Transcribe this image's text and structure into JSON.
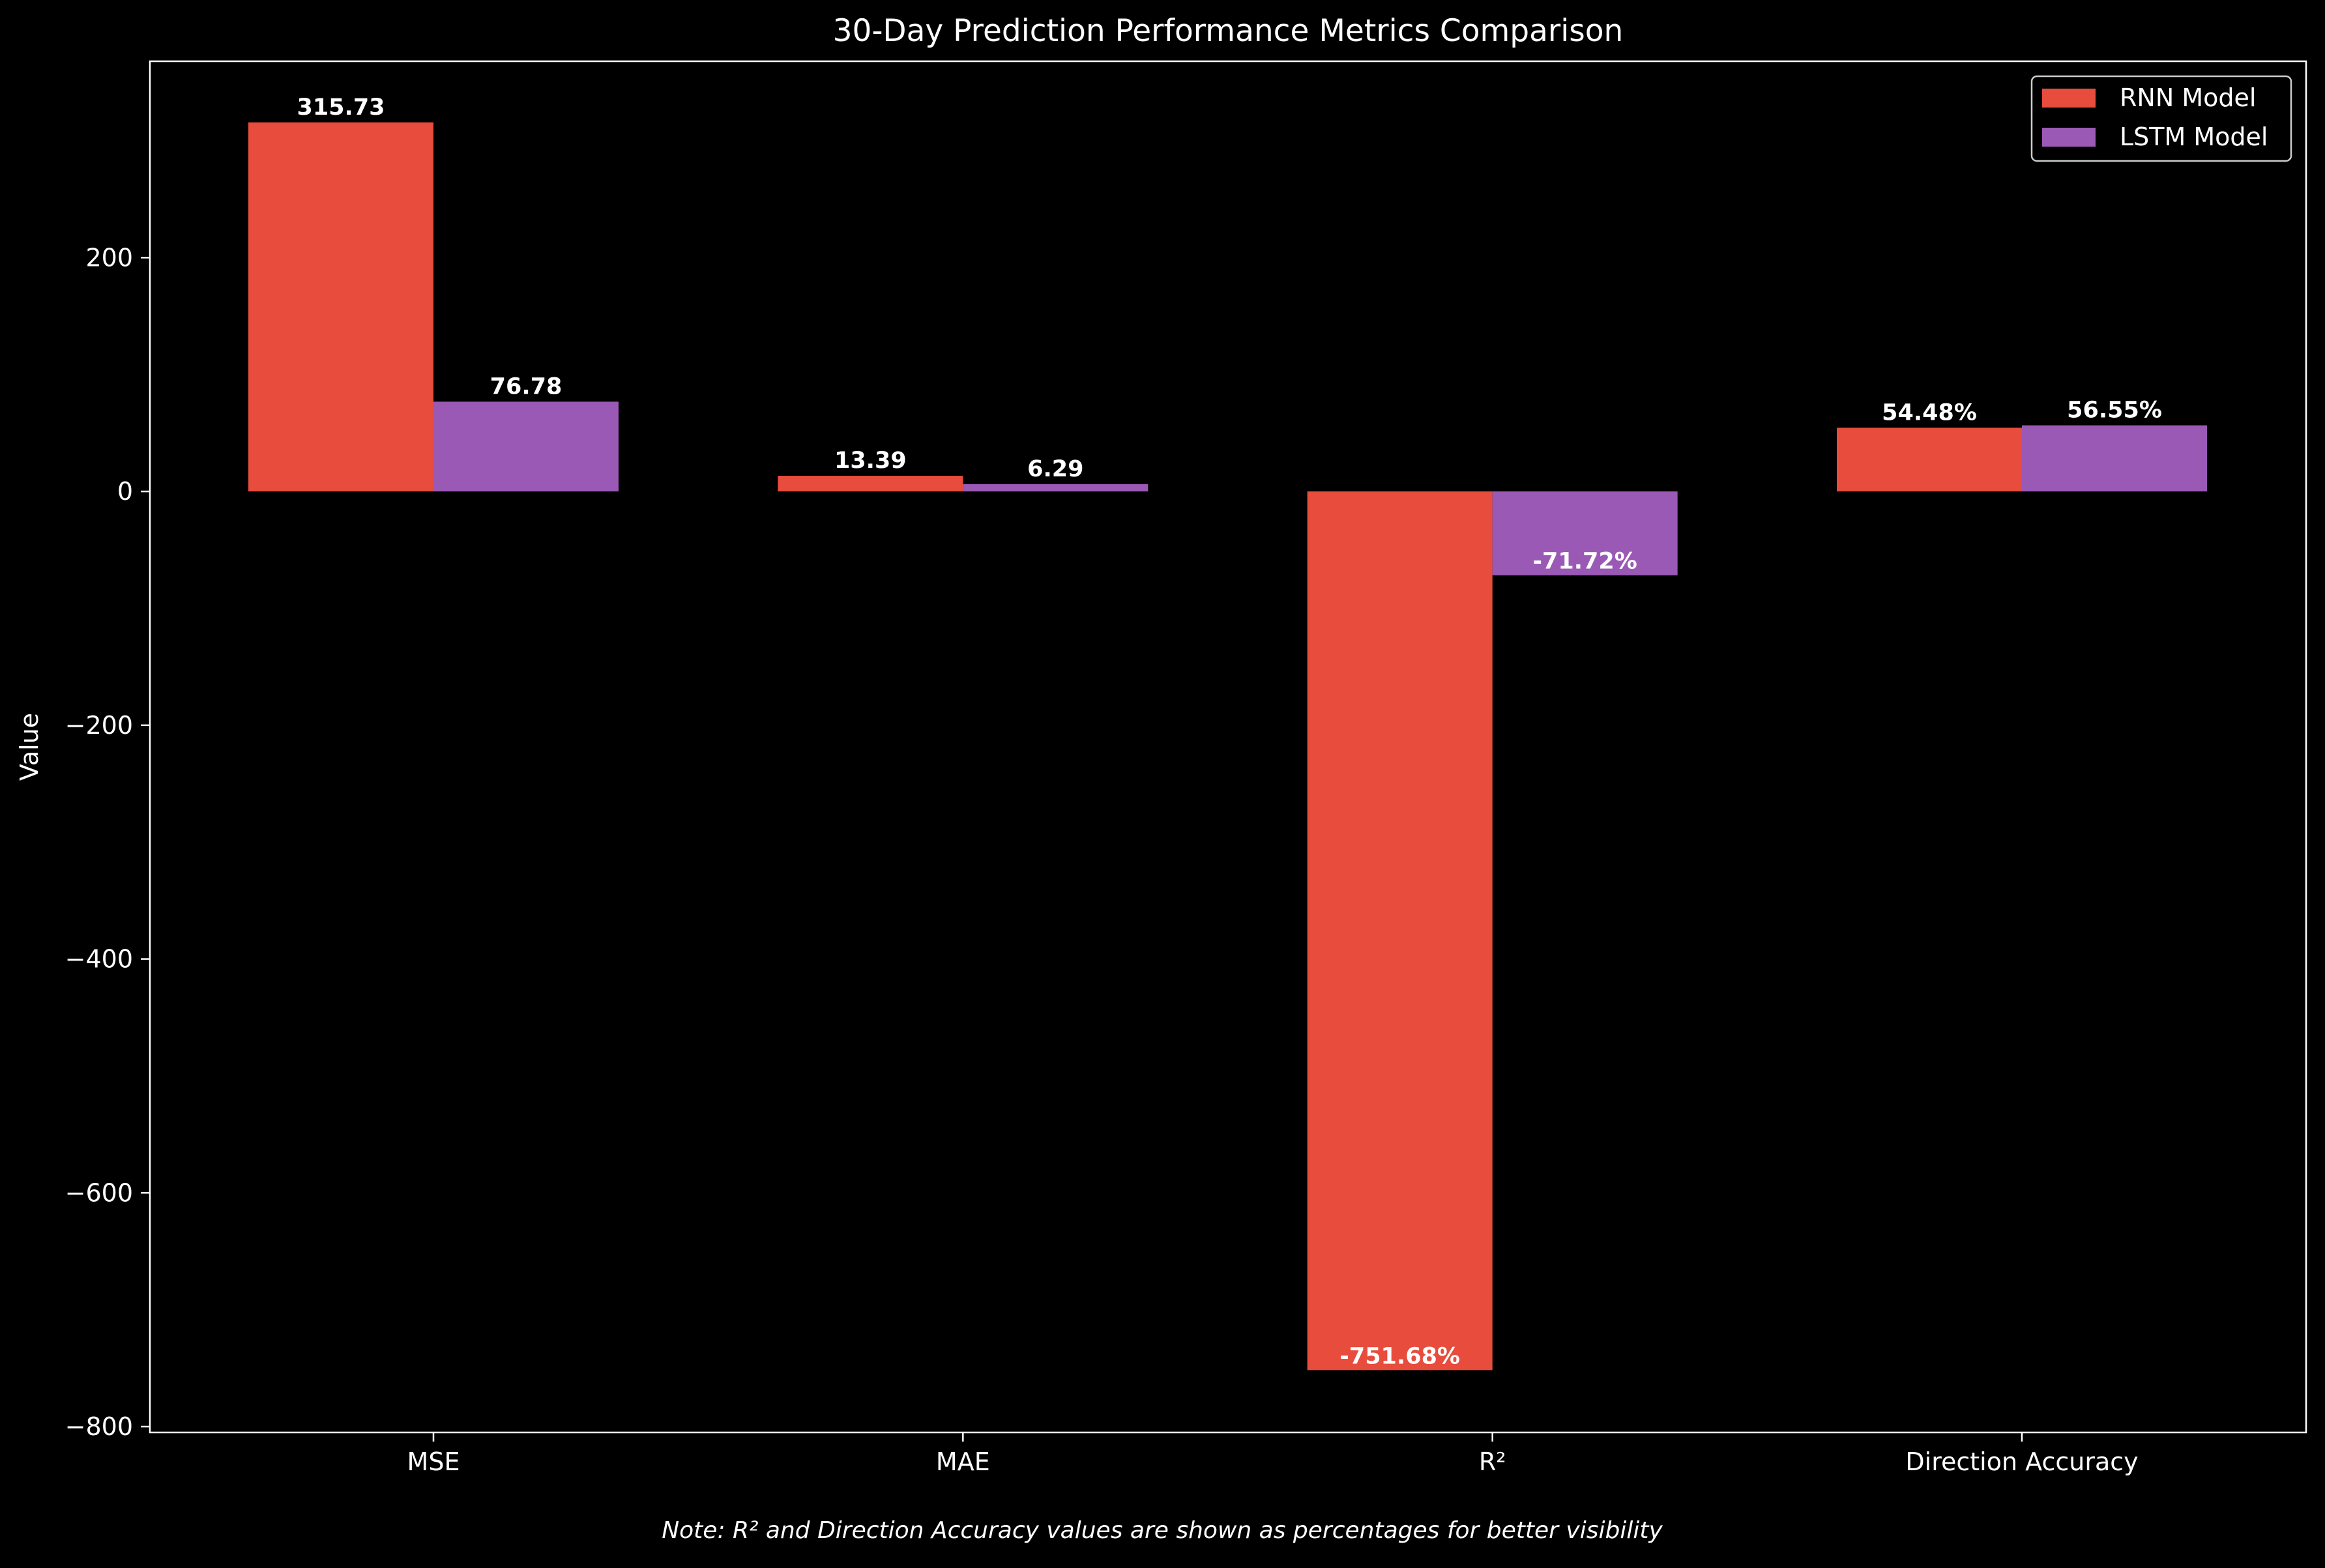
{
  "chart_data": {
    "type": "bar",
    "title": "30-Day Prediction Performance Metrics Comparison",
    "xlabel": "",
    "ylabel": "Value",
    "categories": [
      "MSE",
      "MAE",
      "R²",
      "Direction Accuracy"
    ],
    "series": [
      {
        "name": "RNN Model",
        "color": "#e74c3c",
        "values": [
          315.73,
          13.39,
          -751.68,
          54.48
        ],
        "labels": [
          "315.73",
          "13.39",
          "-751.68%",
          "54.48%"
        ]
      },
      {
        "name": "LSTM Model",
        "color": "#9b59b6",
        "values": [
          76.78,
          6.29,
          -71.72,
          56.55
        ],
        "labels": [
          "76.78",
          "6.29",
          "-71.72%",
          "56.55%"
        ]
      }
    ],
    "ylim": [
      -805,
      368
    ],
    "yticks": [
      200,
      0,
      -200,
      -400,
      -600,
      -800
    ],
    "ytick_labels": [
      "200",
      "0",
      "−200",
      "−400",
      "−600",
      "−800"
    ],
    "grid": false,
    "legend_position": "top-right",
    "note": "Note: R² and Direction Accuracy values are shown as percentages for better visibility",
    "colors": {
      "background": "#000000",
      "axes": "#ffffff",
      "text": "#ffffff"
    }
  }
}
